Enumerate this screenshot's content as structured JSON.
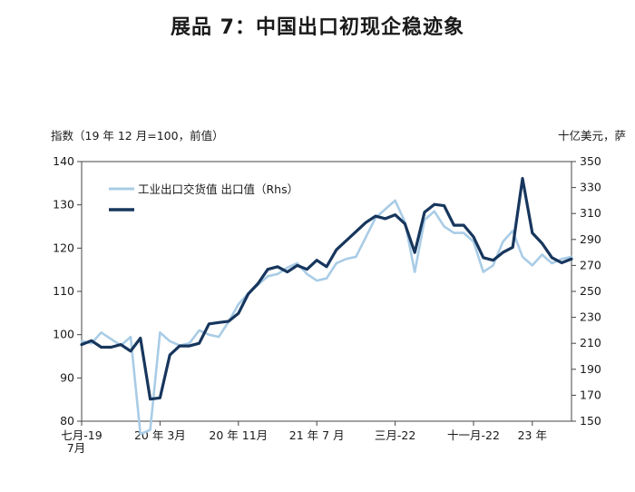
{
  "chart_data": {
    "type": "line",
    "title": "展品 7：中国出口初现企稳迹象",
    "ylabel_left": "指数（19 年 12 月=100，前值）",
    "ylabel_right": "十亿美元，萨",
    "ylim_left": [
      80,
      140
    ],
    "ylim_right": [
      150,
      350
    ],
    "yticks_left": [
      "80",
      "90",
      "100",
      "110",
      "120",
      "130",
      "140"
    ],
    "yticks_right": [
      "150",
      "170",
      "190",
      "210",
      "230",
      "250",
      "270",
      "290",
      "310",
      "330",
      "350"
    ],
    "x_tick_labels": [
      "七月-19",
      "20 年 3月",
      "20 年 11月",
      "21 年 7 月",
      "三月-22",
      "十一月-22",
      "23 年"
    ],
    "x_sub_label": "7月",
    "x_tick_indices": [
      0,
      8,
      16,
      24,
      32,
      40,
      46
    ],
    "grid": false,
    "legend_position": "top-left",
    "series": [
      {
        "name": "工业出口交货值",
        "axis": "left",
        "color": "#a9cce6",
        "values": [
          98.5,
          98.0,
          100.5,
          99.0,
          97.5,
          99.5,
          77.0,
          78.0,
          100.5,
          98.5,
          97.5,
          98.0,
          101.0,
          100.0,
          99.5,
          103.0,
          107.0,
          109.5,
          111.5,
          113.5,
          114.0,
          115.5,
          116.5,
          114.0,
          112.5,
          113.0,
          116.5,
          117.5,
          118.0,
          122.5,
          127.0,
          129.0,
          131.0,
          126.0,
          114.5,
          126.5,
          128.5,
          125.0,
          123.5,
          123.5,
          121.5,
          114.5,
          116.0,
          121.5,
          124.0,
          118.0,
          116.0,
          118.5,
          116.5,
          117.5,
          118.0
        ]
      },
      {
        "name": "出口值（Rhs）",
        "axis": "right",
        "color": "#17365d",
        "values": [
          209,
          212,
          207,
          207,
          209,
          204,
          214,
          167,
          168,
          201,
          208,
          208,
          210,
          225,
          226,
          227,
          233,
          248,
          256,
          267,
          269,
          265,
          270,
          267,
          274,
          269,
          282,
          289,
          296,
          303,
          308,
          306,
          309,
          302,
          280,
          311,
          317,
          316,
          301,
          301,
          292,
          276,
          274,
          280,
          284,
          337,
          295,
          287,
          276,
          272,
          275
        ]
      }
    ]
  }
}
